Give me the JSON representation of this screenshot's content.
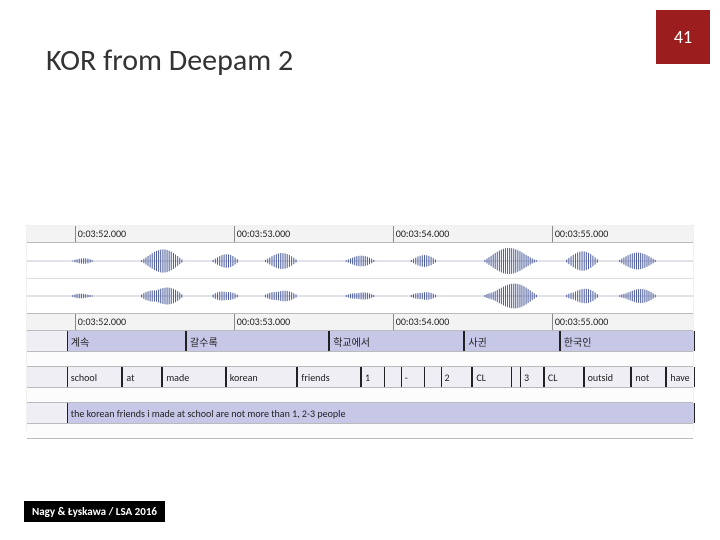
{
  "page_number": "41",
  "title": "KOR from Deepam 2",
  "footer": "Nagy & Łyskawa / LSA 2016",
  "colors": {
    "badge_bg": "#9c1d1d",
    "badge_fg": "#ffffff",
    "footer_bg": "#000000",
    "footer_fg": "#ffffff",
    "wave_stroke": "#4a5a9a",
    "tier_bg": "#eeeef4",
    "highlight_bg": "#c7c7e8",
    "ruler_bg": "#f3f3f3"
  },
  "timeline": {
    "start_sec": 231.7,
    "end_sec": 235.9,
    "ticks": [
      {
        "sec": 232.0,
        "label": "0:03:52.000"
      },
      {
        "sec": 233.0,
        "label": "00:03:53.000"
      },
      {
        "sec": 234.0,
        "label": "00:03:54.000"
      },
      {
        "sec": 235.0,
        "label": "00:03:55.000"
      }
    ]
  },
  "waveform_bursts": [
    {
      "t": 232.05,
      "w": 0.15,
      "a": 0.25
    },
    {
      "t": 232.55,
      "w": 0.28,
      "a": 0.85
    },
    {
      "t": 232.95,
      "w": 0.18,
      "a": 0.55
    },
    {
      "t": 233.3,
      "w": 0.22,
      "a": 0.6
    },
    {
      "t": 233.8,
      "w": 0.2,
      "a": 0.4
    },
    {
      "t": 234.2,
      "w": 0.18,
      "a": 0.45
    },
    {
      "t": 234.75,
      "w": 0.35,
      "a": 0.95
    },
    {
      "t": 235.2,
      "w": 0.22,
      "a": 0.7
    },
    {
      "t": 235.55,
      "w": 0.25,
      "a": 0.6
    }
  ],
  "tiers": [
    {
      "name": "korean-tier",
      "highlight": true,
      "cells": [
        {
          "start": 231.95,
          "end": 232.7,
          "label": "계속"
        },
        {
          "start": 232.7,
          "end": 233.6,
          "label": "갈수록"
        },
        {
          "start": 233.6,
          "end": 234.45,
          "label": "학교에서"
        },
        {
          "start": 234.45,
          "end": 235.05,
          "label": "사귄"
        },
        {
          "start": 235.05,
          "end": 235.9,
          "label": "한국인"
        }
      ]
    },
    {
      "name": "gloss-tier",
      "highlight": false,
      "cells": [
        {
          "start": 231.95,
          "end": 232.3,
          "label": "school"
        },
        {
          "start": 232.3,
          "end": 232.55,
          "label": "at"
        },
        {
          "start": 232.55,
          "end": 232.95,
          "label": "made"
        },
        {
          "start": 232.95,
          "end": 233.4,
          "label": "korean"
        },
        {
          "start": 233.4,
          "end": 233.8,
          "label": "friends"
        },
        {
          "start": 233.8,
          "end": 233.95,
          "label": "1"
        },
        {
          "start": 234.05,
          "end": 234.2,
          "label": "-"
        },
        {
          "start": 234.3,
          "end": 234.5,
          "label": "2"
        },
        {
          "start": 234.5,
          "end": 234.75,
          "label": "CL"
        },
        {
          "start": 234.8,
          "end": 234.95,
          "label": "3"
        },
        {
          "start": 234.95,
          "end": 235.2,
          "label": "CL"
        },
        {
          "start": 235.2,
          "end": 235.5,
          "label": "outsid"
        },
        {
          "start": 235.5,
          "end": 235.72,
          "label": "not"
        },
        {
          "start": 235.72,
          "end": 235.9,
          "label": "have"
        }
      ]
    },
    {
      "name": "translation-tier",
      "highlight": true,
      "cells": [
        {
          "start": 231.95,
          "end": 235.9,
          "label": "the korean friends i made at school are not more than 1, 2-3 people"
        }
      ]
    }
  ]
}
